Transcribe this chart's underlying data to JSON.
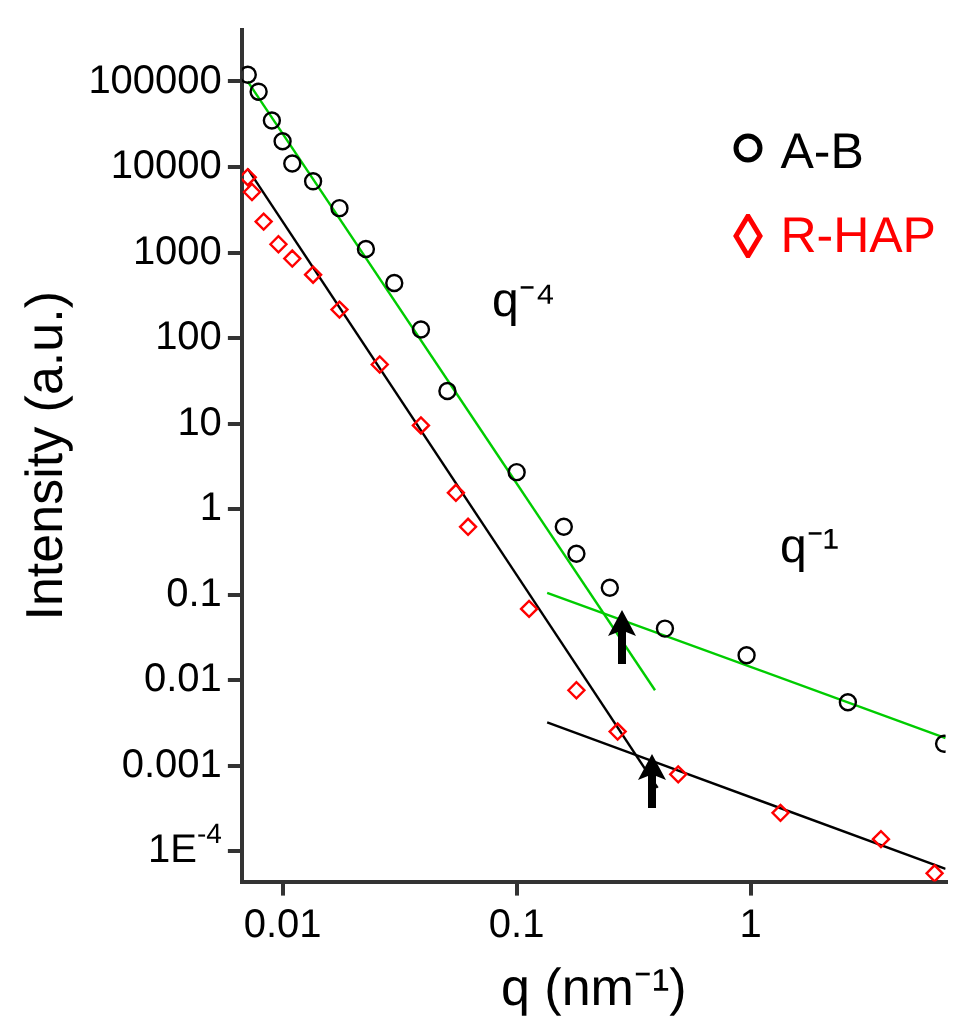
{
  "chart_data": {
    "type": "scatter",
    "xlabel": "q (nm⁻¹)",
    "ylabel": "Intensity (a.u.)",
    "log": "xy",
    "grid": false,
    "legend": "top right",
    "xlim": [
      0.0067,
      6.8
    ],
    "xticks": [
      0.01,
      0.1,
      1
    ],
    "ylim": [
      4.4e-05,
      400000
    ],
    "yticks": [
      100000,
      10000,
      1000,
      100,
      10,
      1,
      0.1,
      0.01,
      0.001,
      {
        "value": 0.0001,
        "label": "1E$^{-4}$"
      }
    ],
    "annotations": [
      "q⁻⁴",
      "q⁻¹"
    ],
    "series": [
      {
        "name": "A-B",
        "color": "#000000",
        "marker": "circle",
        "x": [
          0.0071,
          0.0079,
          0.009,
          0.01,
          0.011,
          0.0135,
          0.0175,
          0.0227,
          0.03,
          0.039,
          0.0506,
          0.1,
          0.159,
          0.18,
          0.25,
          0.43,
          0.96,
          2.6,
          6.7
        ],
        "values": [
          120000,
          76000,
          35000,
          20000,
          11000,
          6800,
          3300,
          1100,
          440,
          126,
          24,
          2.7,
          0.62,
          0.3,
          0.12,
          0.04,
          0.0195,
          0.0055,
          0.0018
        ]
      },
      {
        "name": "R-HAP",
        "color": "#ff0000",
        "marker": "diamond",
        "x": [
          0.0071,
          0.0074,
          0.0083,
          0.0096,
          0.011,
          0.0135,
          0.0175,
          0.026,
          0.039,
          0.055,
          0.062,
          0.113,
          0.18,
          0.27,
          0.49,
          1.34,
          3.6,
          6.1
        ],
        "values": [
          7600,
          5100,
          2300,
          1250,
          850,
          550,
          215,
          49,
          9.5,
          1.55,
          0.62,
          0.068,
          0.0076,
          0.0025,
          0.00079,
          0.00028,
          0.000138,
          5.5e-05
        ]
      },
      {
        "type": "line",
        "color": "#00cc00",
        "marker": "none",
        "x": [
          0.0071,
          0.39
        ],
        "values": [
          100000,
          0.0076
        ]
      },
      {
        "type": "line",
        "color": "#00cc00",
        "marker": "none",
        "x": [
          0.135,
          6.8
        ],
        "values": [
          0.105,
          0.0021
        ]
      },
      {
        "type": "line",
        "color": "#000000",
        "marker": "none",
        "x": [
          0.0071,
          0.4
        ],
        "values": [
          9500,
          0.00055
        ]
      },
      {
        "type": "line",
        "color": "#000000",
        "marker": "none",
        "x": [
          0.135,
          6.8
        ],
        "values": [
          0.0032,
          6.2e-05
        ]
      }
    ]
  }
}
